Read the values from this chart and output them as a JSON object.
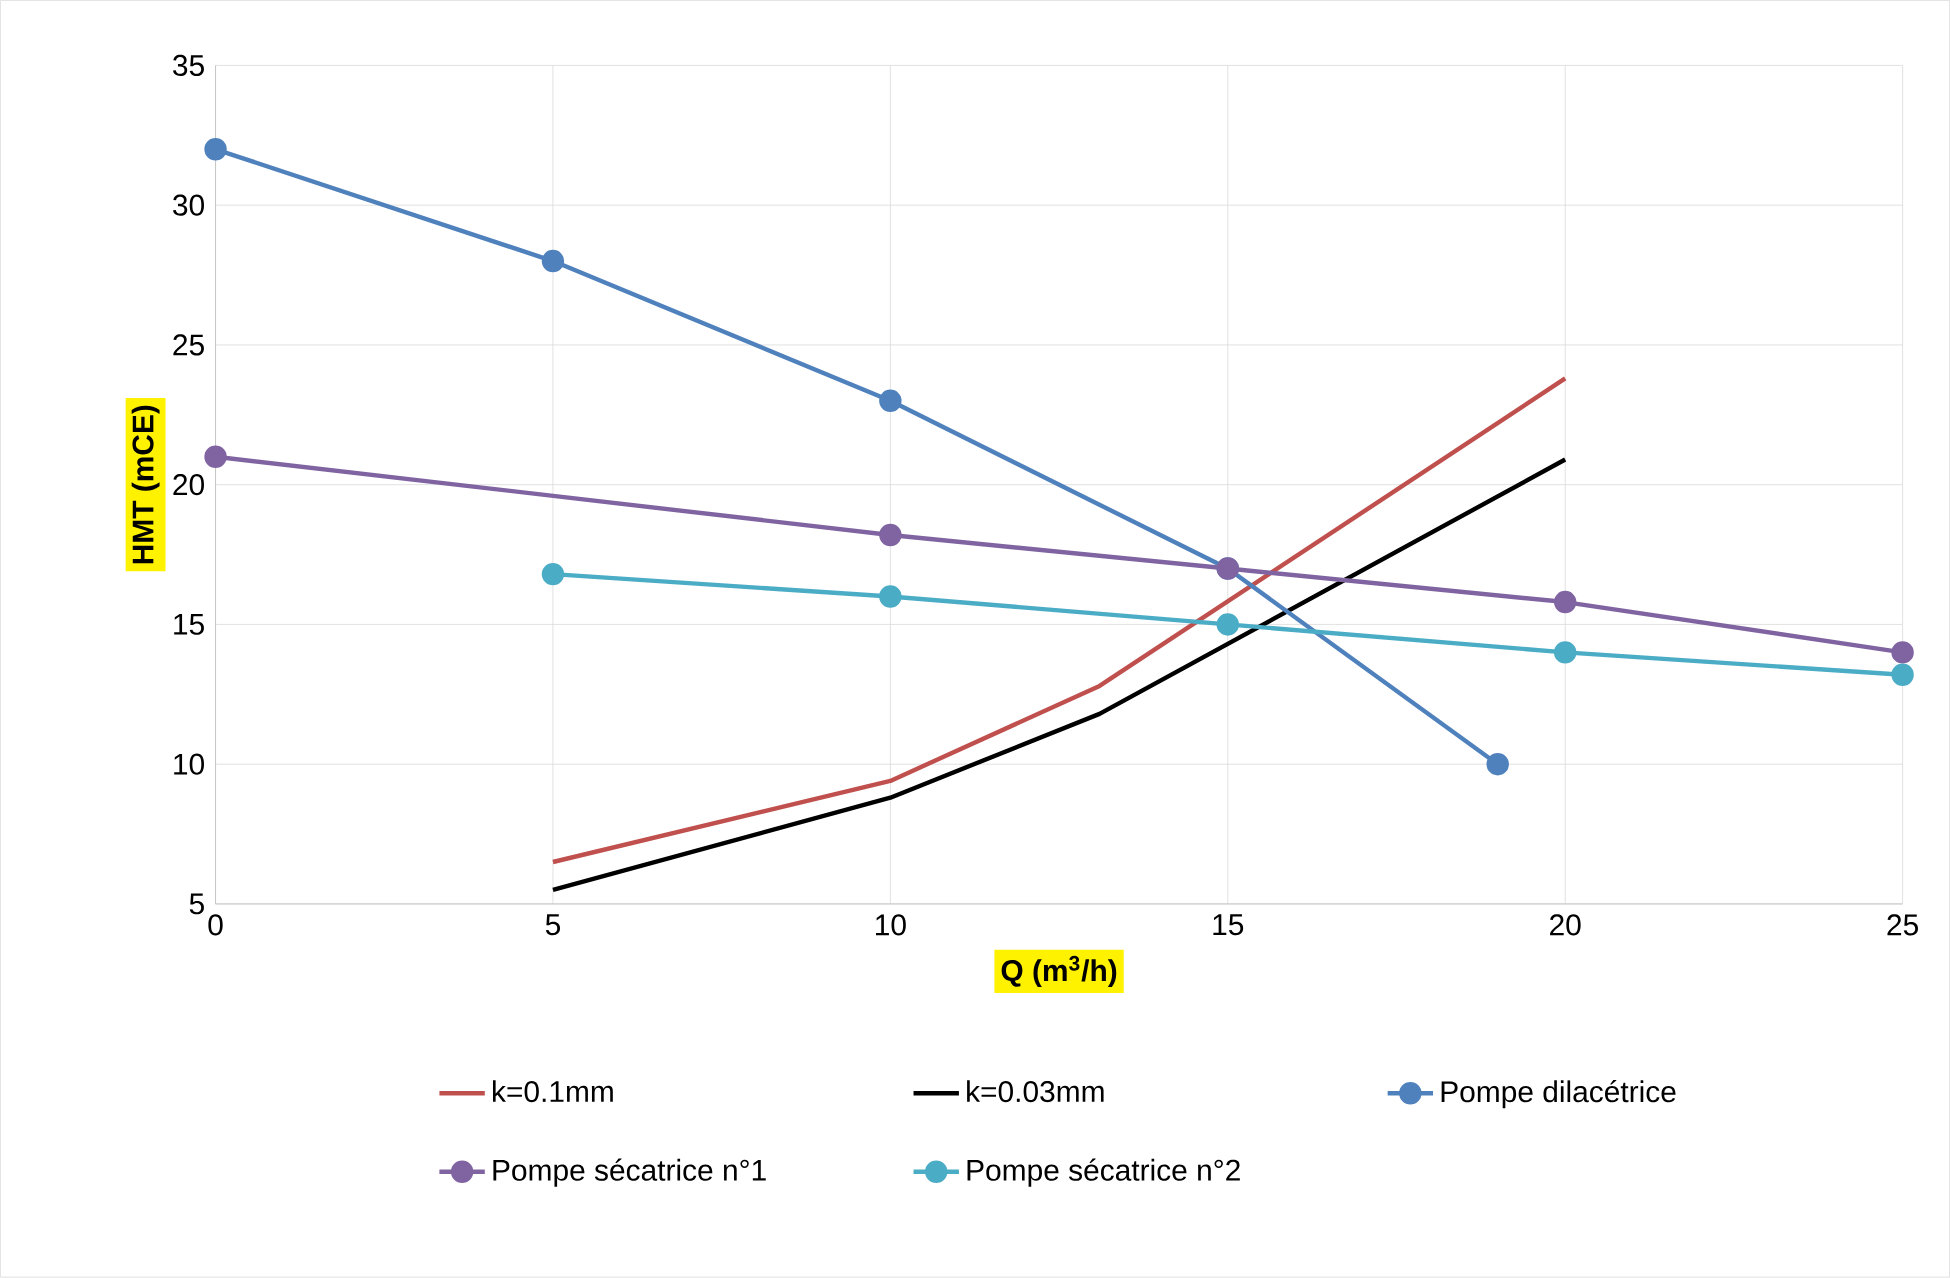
{
  "chart_data": {
    "type": "line",
    "xlabel": "**Q (m$^{3}$/h)**",
    "ylabel": "**HMT (mCE)**",
    "xlim": [
      0,
      25
    ],
    "ylim": [
      5,
      35
    ],
    "xticks": [
      0,
      5,
      10,
      15,
      20,
      25
    ],
    "yticks": [
      5,
      10,
      15,
      20,
      25,
      30,
      35
    ],
    "grid": true,
    "legend": "bottom",
    "series": [
      {
        "name": "k=0.1mm",
        "color": "#c0504d",
        "marker": "none",
        "x": [
          5,
          10,
          13.1,
          20
        ],
        "values": [
          6.5,
          9.4,
          12.8,
          23.8
        ]
      },
      {
        "name": "k=0.03mm",
        "color": "#000000",
        "marker": "none",
        "x": [
          5,
          10,
          13.1,
          20
        ],
        "values": [
          5.5,
          8.8,
          11.8,
          20.9
        ]
      },
      {
        "name": "Pompe dilacétrice",
        "color": "#4f81bd",
        "marker": "circle",
        "x": [
          0,
          5,
          10,
          15,
          19
        ],
        "values": [
          32,
          28,
          23,
          17,
          10
        ]
      },
      {
        "name": "Pompe sécatrice n°1",
        "color": "#8064a2",
        "marker": "circle",
        "x": [
          0,
          10,
          15,
          20,
          25
        ],
        "values": [
          21,
          18.2,
          17,
          15.8,
          14
        ]
      },
      {
        "name": "Pompe sécatrice n°2",
        "color": "#4bacc6",
        "marker": "circle",
        "x": [
          5,
          10,
          15,
          20,
          25
        ],
        "values": [
          16.8,
          16,
          15,
          14,
          13.2
        ]
      }
    ]
  }
}
